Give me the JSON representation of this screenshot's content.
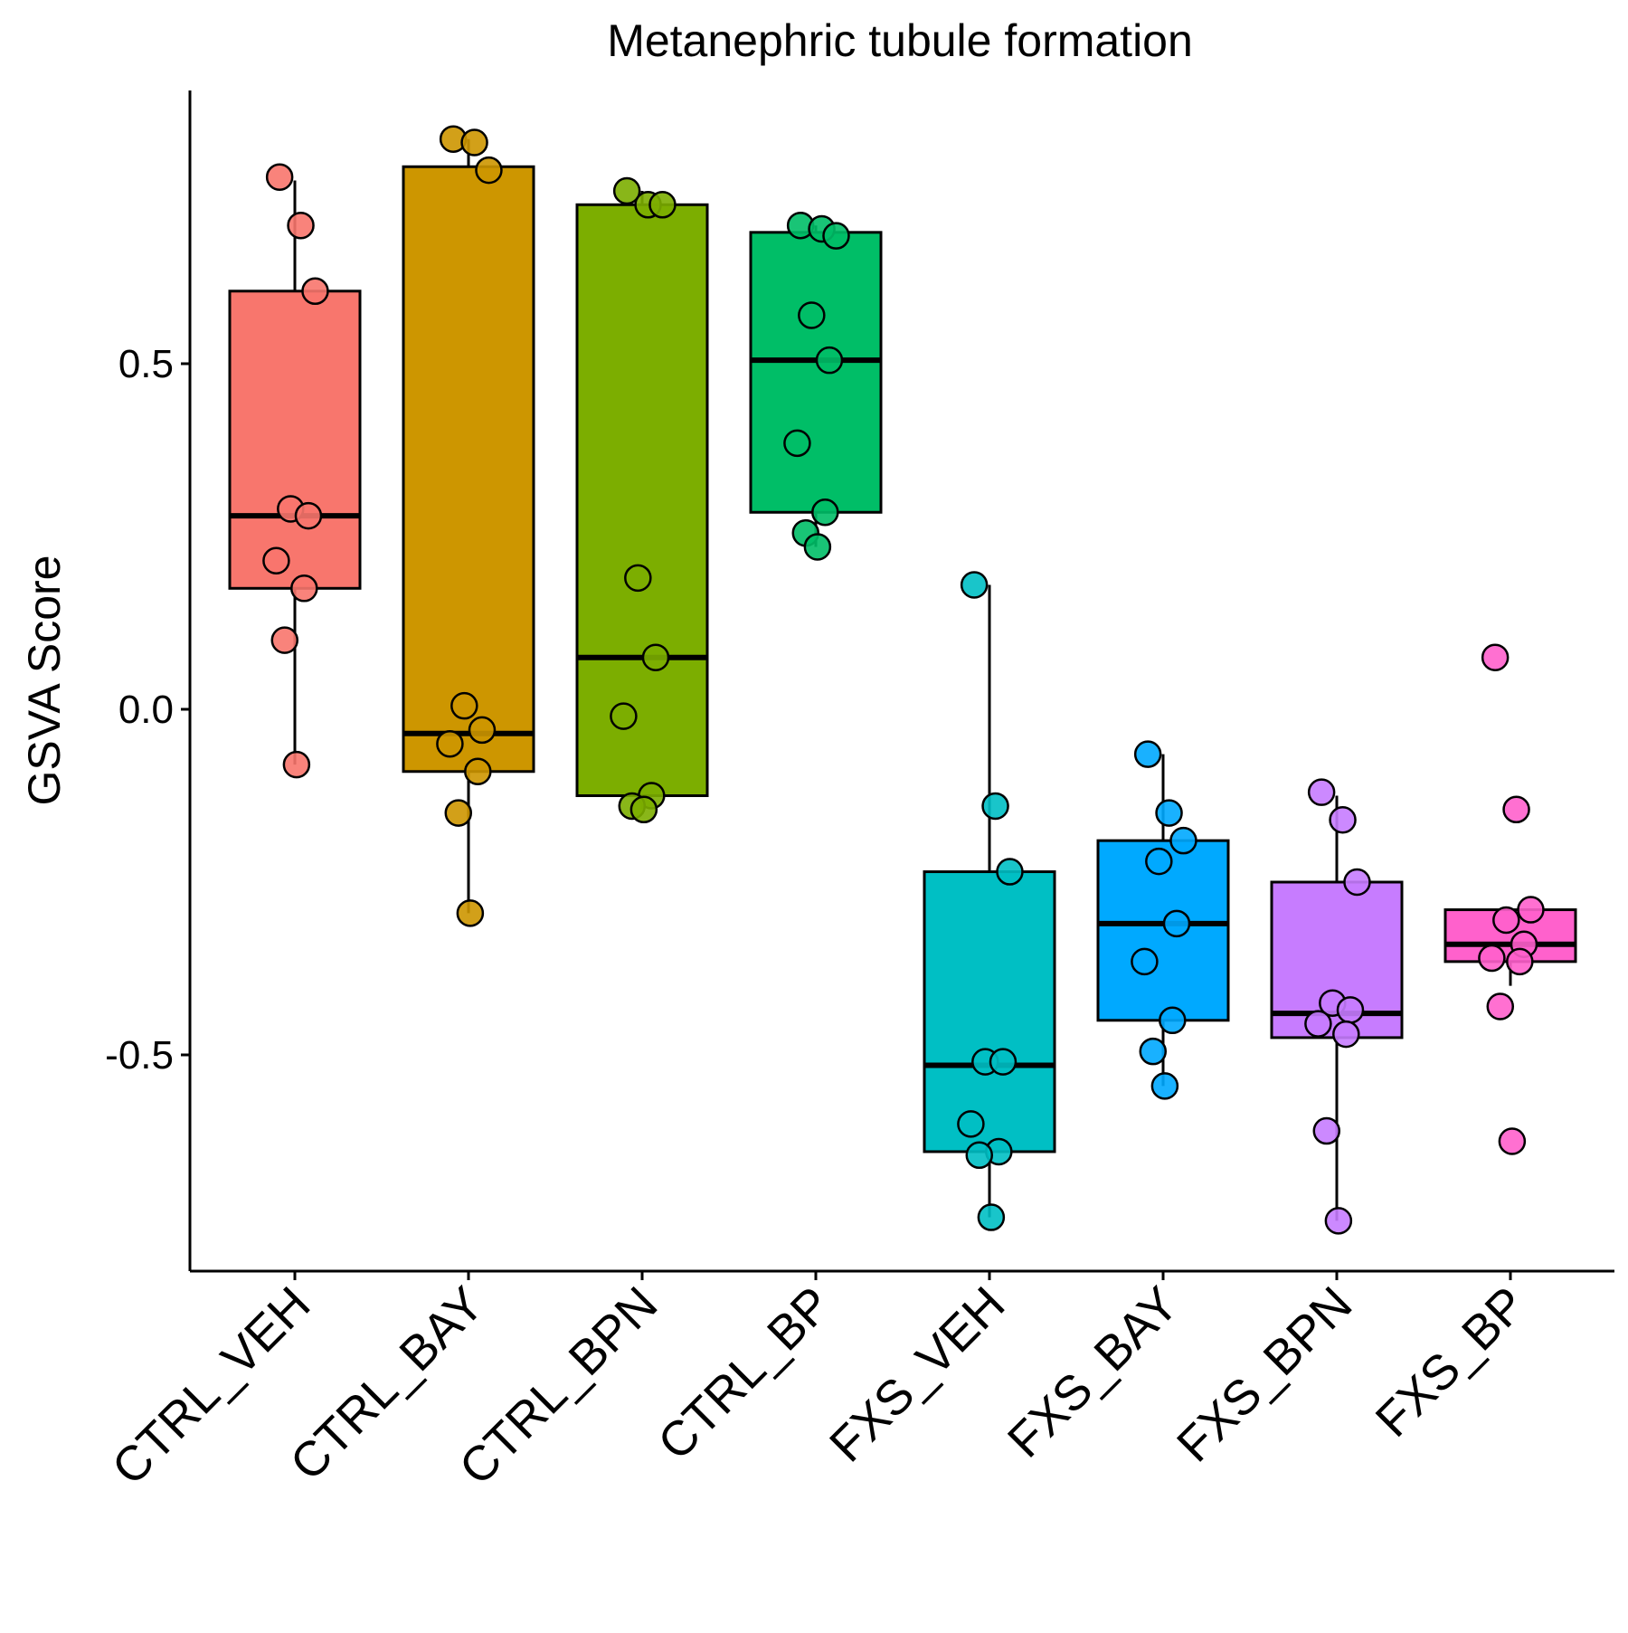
{
  "chart_data": {
    "type": "box",
    "title": "Metanephric tubule formation",
    "xlabel": "",
    "ylabel": "GSVA Score",
    "ylim": [
      -0.8,
      0.9
    ],
    "yticks": [
      {
        "value": 0.5,
        "label": "0.5"
      },
      {
        "value": 0.0,
        "label": "0.0"
      },
      {
        "value": -0.5,
        "label": "-0.5"
      }
    ],
    "grid": false,
    "legend": "none",
    "categories": [
      "CTRL_VEH",
      "CTRL_BAY",
      "CTRL_BPN",
      "CTRL_BP",
      "FXS_VEH",
      "FXS_BAY",
      "FXS_BPN",
      "FXS_BP"
    ],
    "boxes": [
      {
        "category": "CTRL_VEH",
        "color": "#F8766D",
        "whisker_low": -0.08,
        "q1": 0.175,
        "median": 0.28,
        "q3": 0.605,
        "whisker_high": 0.765,
        "points": [
          0.77,
          0.7,
          0.605,
          0.29,
          0.28,
          0.215,
          0.175,
          0.1,
          -0.08
        ]
      },
      {
        "category": "CTRL_BAY",
        "color": "#CD9600",
        "whisker_low": -0.295,
        "q1": -0.09,
        "median": -0.035,
        "q3": 0.785,
        "whisker_high": 0.825,
        "points": [
          0.825,
          0.82,
          0.78,
          0.005,
          -0.03,
          -0.05,
          -0.09,
          -0.15,
          -0.295
        ]
      },
      {
        "category": "CTRL_BPN",
        "color": "#7CAE00",
        "whisker_low": -0.145,
        "q1": -0.125,
        "median": 0.075,
        "q3": 0.73,
        "whisker_high": 0.75,
        "points": [
          0.75,
          0.73,
          0.73,
          0.19,
          0.075,
          -0.01,
          -0.125,
          -0.14,
          -0.145
        ]
      },
      {
        "category": "CTRL_BP",
        "color": "#00BE67",
        "whisker_low": 0.235,
        "q1": 0.285,
        "median": 0.505,
        "q3": 0.69,
        "whisker_high": 0.7,
        "points": [
          0.7,
          0.695,
          0.685,
          0.57,
          0.505,
          0.385,
          0.285,
          0.255,
          0.235
        ]
      },
      {
        "category": "FXS_VEH",
        "color": "#00BFC4",
        "whisker_low": -0.735,
        "q1": -0.64,
        "median": -0.515,
        "q3": -0.235,
        "whisker_high": 0.18,
        "points": [
          0.18,
          -0.14,
          -0.235,
          -0.51,
          -0.51,
          -0.6,
          -0.64,
          -0.645,
          -0.735
        ]
      },
      {
        "category": "FXS_BAY",
        "color": "#00A9FF",
        "whisker_low": -0.545,
        "q1": -0.45,
        "median": -0.31,
        "q3": -0.19,
        "whisker_high": -0.065,
        "points": [
          -0.065,
          -0.15,
          -0.19,
          -0.22,
          -0.31,
          -0.365,
          -0.45,
          -0.495,
          -0.545
        ]
      },
      {
        "category": "FXS_BPN",
        "color": "#C77CFF",
        "whisker_low": -0.74,
        "q1": -0.475,
        "median": -0.44,
        "q3": -0.25,
        "whisker_high": -0.125,
        "points": [
          -0.12,
          -0.16,
          -0.25,
          -0.425,
          -0.435,
          -0.455,
          -0.47,
          -0.61,
          -0.74
        ]
      },
      {
        "category": "FXS_BP",
        "color": "#FF61CC",
        "whisker_low": -0.4,
        "q1": -0.365,
        "median": -0.34,
        "q3": -0.29,
        "whisker_high": -0.29,
        "points": [
          0.075,
          -0.145,
          -0.29,
          -0.305,
          -0.34,
          -0.36,
          -0.365,
          -0.43,
          -0.625
        ]
      }
    ]
  }
}
